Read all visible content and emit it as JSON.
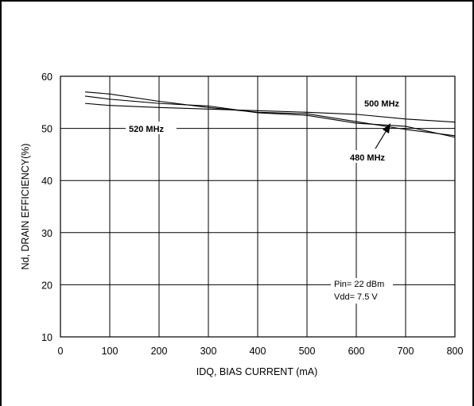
{
  "chart_data": {
    "type": "line",
    "title": "",
    "xlabel": "IDQ, BIAS CURRENT (mA)",
    "ylabel": "Nd, DRAIN EFFICIENCY(%)",
    "xlim": [
      0,
      800
    ],
    "ylim": [
      10,
      60
    ],
    "xticks": [
      "0",
      "100",
      "200",
      "300",
      "400",
      "500",
      "600",
      "700",
      "800"
    ],
    "yticks": [
      "10",
      "20",
      "30",
      "40",
      "50",
      "60"
    ],
    "grid": true,
    "series": [
      {
        "name": "500 MHz",
        "x": [
          50,
          100,
          200,
          300,
          400,
          500,
          600,
          700,
          800
        ],
        "y": [
          54.8,
          54.4,
          54.0,
          53.7,
          53.4,
          53.1,
          52.7,
          51.8,
          51.2
        ]
      },
      {
        "name": "480 MHz",
        "x": [
          50,
          100,
          200,
          300,
          400,
          500,
          600,
          700,
          800
        ],
        "y": [
          56.2,
          55.6,
          54.8,
          54.3,
          53.0,
          52.5,
          51.0,
          50.4,
          48.3
        ]
      },
      {
        "name": "520 MHz",
        "x": [
          50,
          100,
          200,
          300,
          400,
          500,
          600,
          700,
          800
        ],
        "y": [
          57.0,
          56.6,
          55.2,
          54.0,
          53.1,
          52.8,
          51.3,
          49.8,
          48.6
        ]
      }
    ],
    "annotations": [
      "Pin= 22 dBm",
      "Vdd= 7.5 V"
    ]
  }
}
